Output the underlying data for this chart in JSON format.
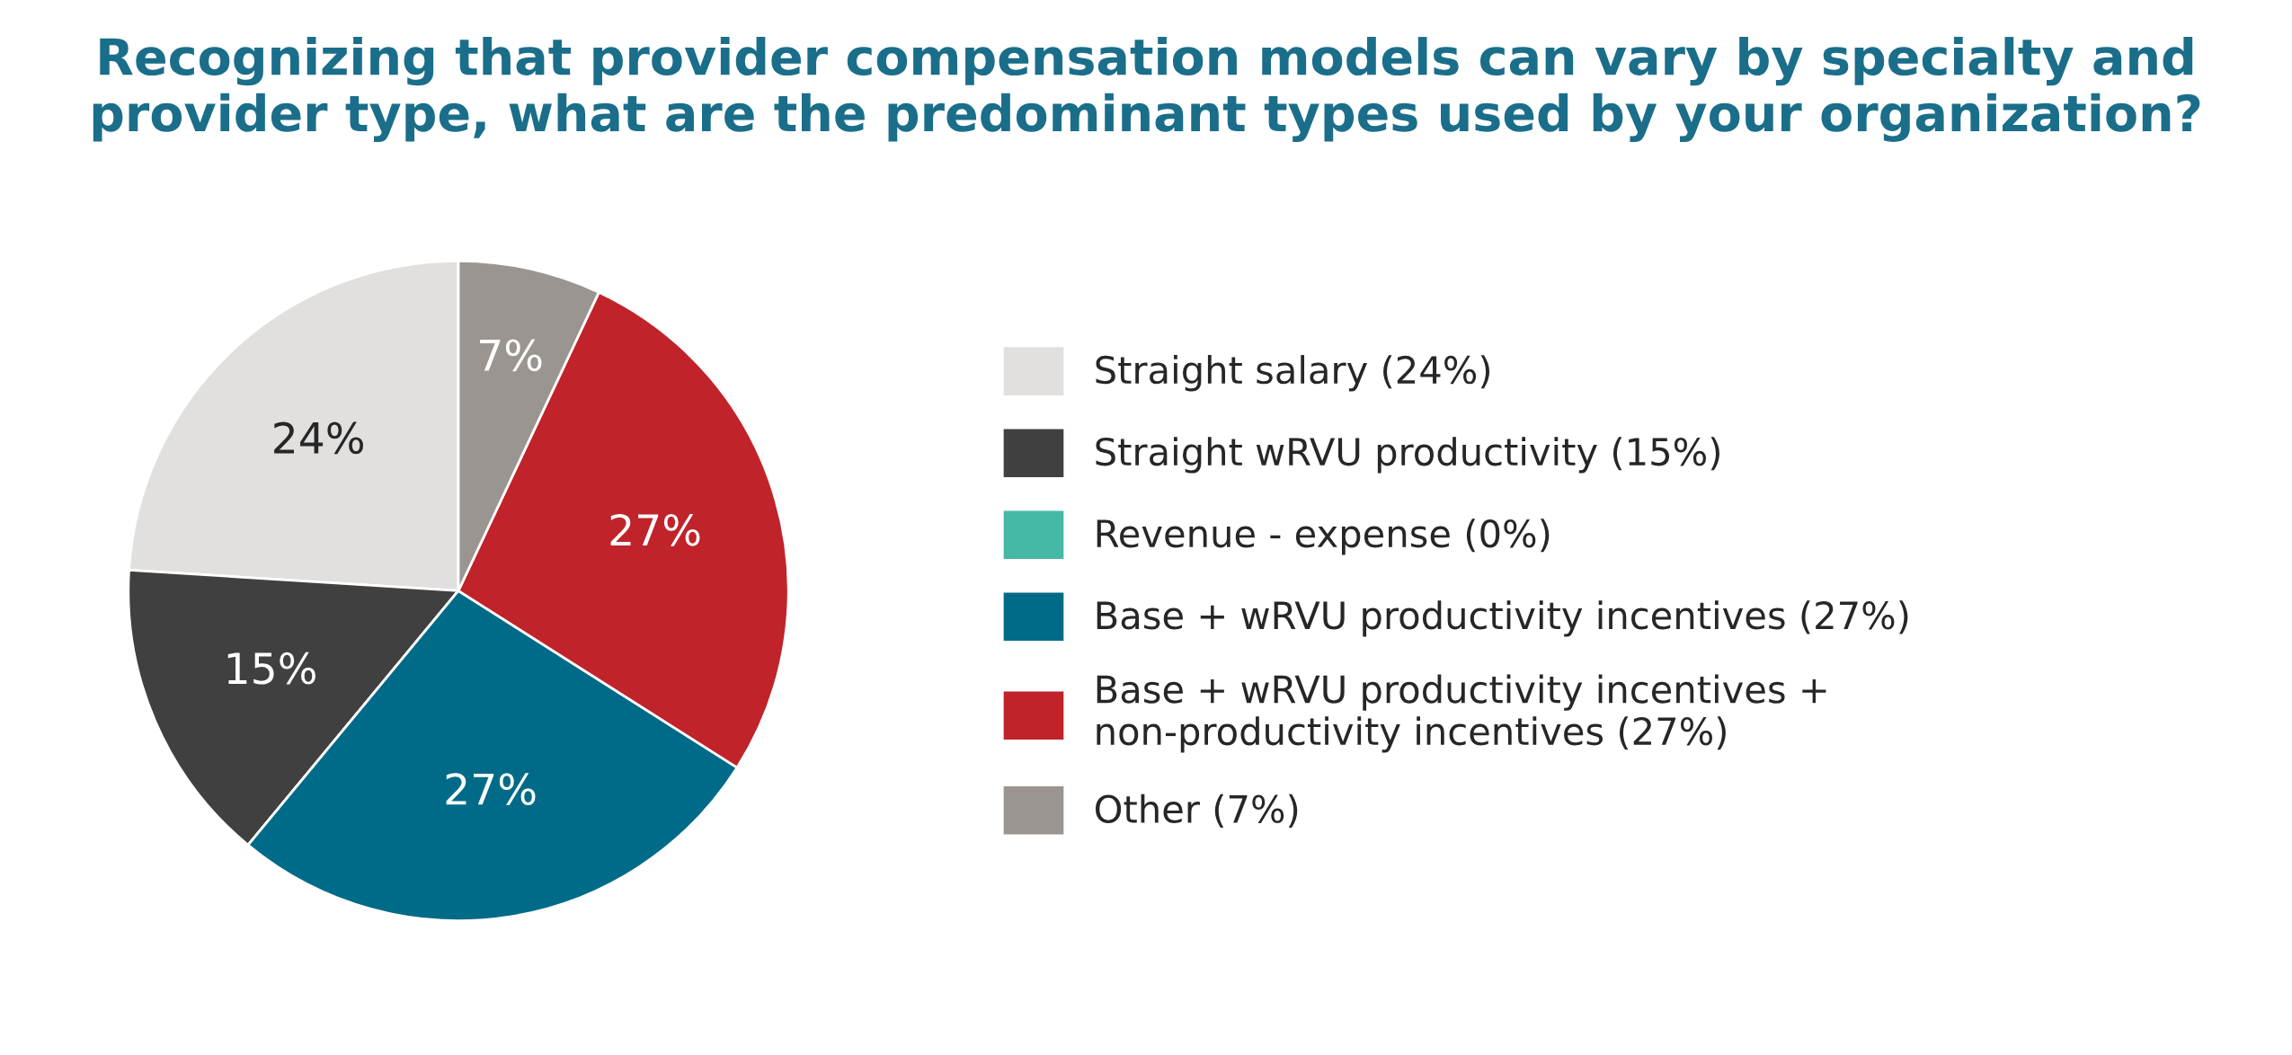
{
  "chart_data": {
    "type": "pie",
    "title": "Recognizing that provider compensation models can vary by specialty and provider type, what are the predominant types used by your organization?",
    "categories": [
      "Straight salary (24%)",
      "Straight wRVU productivity (15%)",
      "Revenue - expense (0%)",
      "Base + wRVU productivity incentives (27%)",
      "Base + wRVU productivity incentives +\nnon-productivity incentives (27%)",
      "Other (7%)"
    ],
    "values": [
      24,
      15,
      0,
      27,
      27,
      7
    ],
    "colors": [
      "#e1e0df",
      "#404040",
      "#45b8a6",
      "#006b88",
      "#c0232a",
      "#9a9590"
    ],
    "value_labels": [
      "24%",
      "15%",
      null,
      "27%",
      "27%",
      "7%"
    ],
    "legend": "right"
  }
}
